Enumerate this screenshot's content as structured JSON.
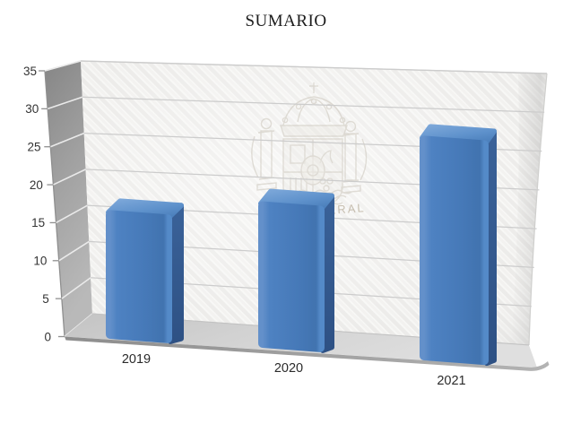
{
  "chart_data": {
    "type": "bar",
    "style": "3d-column",
    "title": "SUMARIO",
    "categories": [
      "2019",
      "2020",
      "2021"
    ],
    "values": [
      17,
      19,
      28
    ],
    "ylim": [
      0,
      35
    ],
    "yticks": [
      0,
      5,
      10,
      15,
      20,
      25,
      30,
      35
    ],
    "xlabel": "",
    "ylabel": "",
    "legend": "none",
    "grid": "horizontal",
    "colors": {
      "bar_front": "#4a7ebd",
      "bar_side": "#31568b",
      "bar_top": "#6b9bd2",
      "side_wall": "#9a9a9a",
      "back_wall": "#f6f6f4",
      "floor": "#cfcfcf",
      "grid_line": "#cccccc",
      "tick_text": "#333333"
    },
    "watermark": {
      "icon": "spanish-coat-of-arms-watermark",
      "visible_text_fragment": "ERAL"
    }
  }
}
